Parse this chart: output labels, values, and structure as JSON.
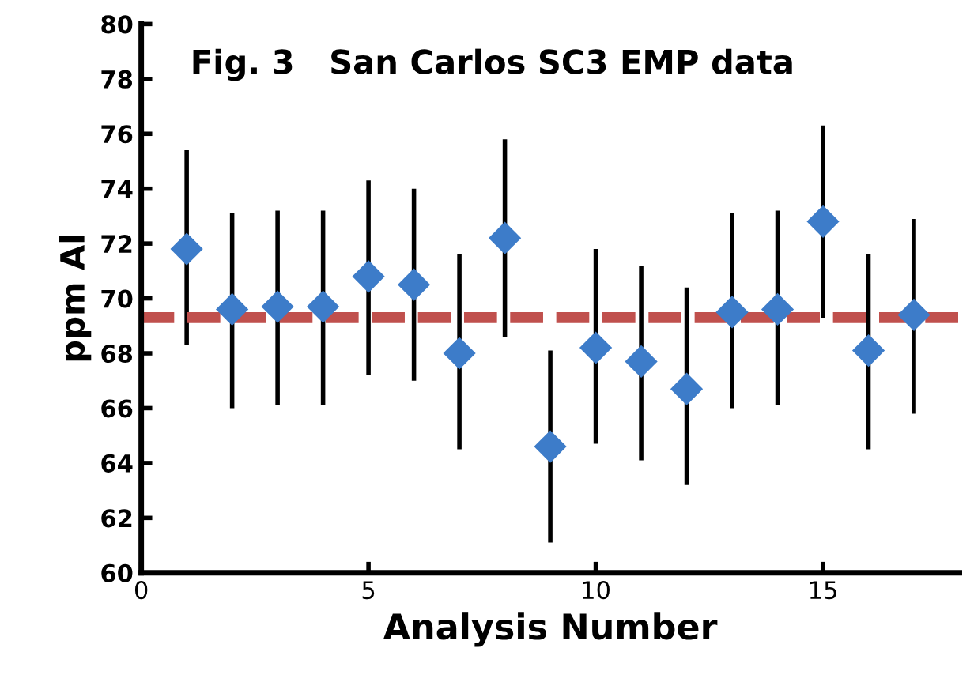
{
  "chart_data": {
    "type": "scatter",
    "title": "Fig. 3   San Carlos SC3 EMP data",
    "xlabel": "Analysis Number",
    "ylabel": "ppm Al",
    "x": [
      1,
      2,
      3,
      4,
      5,
      6,
      7,
      8,
      9,
      10,
      11,
      12,
      13,
      14,
      15,
      16,
      17
    ],
    "series": [
      {
        "color": "#3d7cc9",
        "values": [
          71.8,
          69.6,
          69.7,
          69.7,
          70.8,
          70.5,
          68.0,
          72.2,
          64.6,
          68.2,
          67.7,
          66.7,
          69.5,
          69.6,
          72.8,
          68.1,
          69.4
        ],
        "errors": [
          [
            68.3,
            75.4
          ],
          [
            66.0,
            73.1
          ],
          [
            66.1,
            73.2
          ],
          [
            66.1,
            73.2
          ],
          [
            67.2,
            74.3
          ],
          [
            67.0,
            74.0
          ],
          [
            64.5,
            71.6
          ],
          [
            68.6,
            75.8
          ],
          [
            61.1,
            68.1
          ],
          [
            64.7,
            71.8
          ],
          [
            64.1,
            71.2
          ],
          [
            63.2,
            70.4
          ],
          [
            66.0,
            73.1
          ],
          [
            66.1,
            73.2
          ],
          [
            69.3,
            76.3
          ],
          [
            64.5,
            71.6
          ],
          [
            65.8,
            72.9
          ]
        ]
      }
    ],
    "ref_lines": [
      {
        "axis": "y",
        "value": 69.3,
        "color": "#c0504d",
        "line_style": "dashed"
      }
    ],
    "xlim": [
      0,
      18
    ],
    "xticks": [
      0,
      5,
      10,
      15
    ],
    "ylim": [
      60,
      80
    ],
    "yticks": [
      60,
      62,
      64,
      66,
      68,
      70,
      72,
      74,
      76,
      78,
      80
    ],
    "marker": "diamond",
    "grid": false,
    "legend": false
  }
}
